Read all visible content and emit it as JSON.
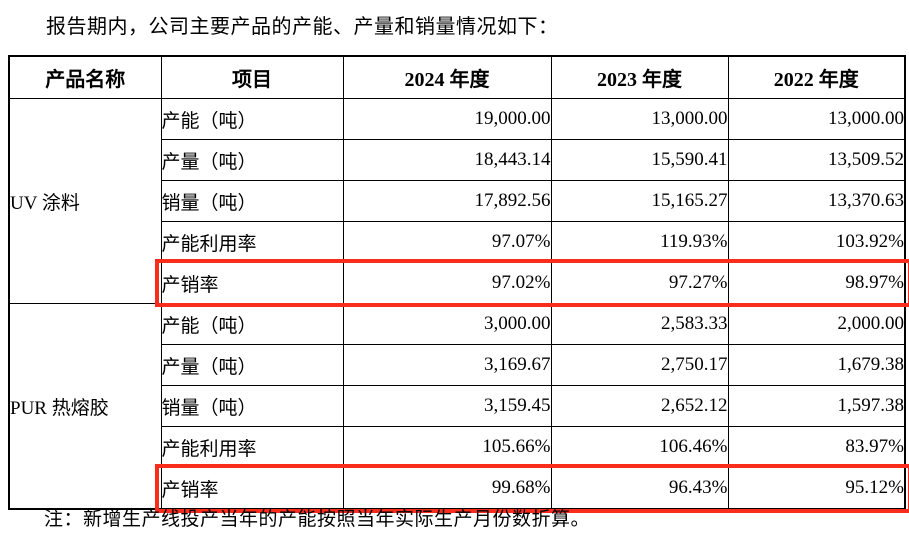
{
  "intro_text": "报告期内，公司主要产品的产能、产量和销量情况如下：",
  "note_text": "注：新增生产线投产当年的产能按照当年实际生产月份数折算。",
  "highlight_color": "#fa2c1c",
  "table": {
    "headers": [
      "产品名称",
      "项目",
      "2024 年度",
      "2023 年度",
      "2022 年度"
    ],
    "groups": [
      {
        "product": "UV 涂料",
        "rows": [
          {
            "item": "产能（吨）",
            "values": [
              "19,000.00",
              "13,000.00",
              "13,000.00"
            ],
            "highlight": false
          },
          {
            "item": "产量（吨）",
            "values": [
              "18,443.14",
              "15,590.41",
              "13,509.52"
            ],
            "highlight": false
          },
          {
            "item": "销量（吨）",
            "values": [
              "17,892.56",
              "15,165.27",
              "13,370.63"
            ],
            "highlight": false
          },
          {
            "item": "产能利用率",
            "values": [
              "97.07%",
              "119.93%",
              "103.92%"
            ],
            "highlight": false
          },
          {
            "item": "产销率",
            "values": [
              "97.02%",
              "97.27%",
              "98.97%"
            ],
            "highlight": true
          }
        ]
      },
      {
        "product": "PUR 热熔胶",
        "rows": [
          {
            "item": "产能（吨）",
            "values": [
              "3,000.00",
              "2,583.33",
              "2,000.00"
            ],
            "highlight": false
          },
          {
            "item": "产量（吨）",
            "values": [
              "3,169.67",
              "2,750.17",
              "1,679.38"
            ],
            "highlight": false
          },
          {
            "item": "销量（吨）",
            "values": [
              "3,159.45",
              "2,652.12",
              "1,597.38"
            ],
            "highlight": false
          },
          {
            "item": "产能利用率",
            "values": [
              "105.66%",
              "106.46%",
              "83.97%"
            ],
            "highlight": false
          },
          {
            "item": "产销率",
            "values": [
              "99.68%",
              "96.43%",
              "95.12%"
            ],
            "highlight": true
          }
        ]
      }
    ]
  }
}
